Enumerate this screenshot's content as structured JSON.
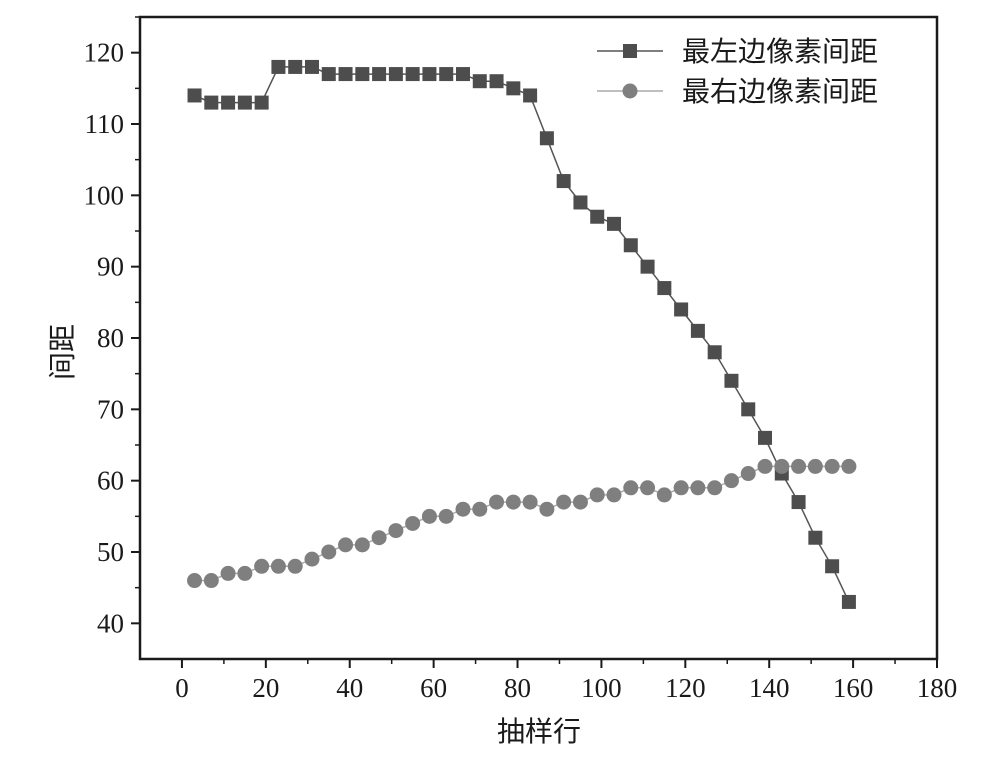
{
  "chart_data": {
    "type": "line",
    "title": "",
    "xlabel": "抽样行",
    "ylabel": "间距",
    "xlim": [
      -10,
      180
    ],
    "ylim": [
      35,
      125
    ],
    "xticks": [
      0,
      20,
      40,
      60,
      80,
      100,
      120,
      140,
      160,
      180
    ],
    "yticks": [
      40,
      50,
      60,
      70,
      80,
      90,
      100,
      110,
      120
    ],
    "grid": false,
    "legend_position": "top-right",
    "series": [
      {
        "name": "最左边像素间距",
        "marker": "square",
        "color": "#4d4d4d",
        "line_color": "#555555",
        "x": [
          3,
          7,
          11,
          15,
          19,
          23,
          27,
          31,
          35,
          39,
          43,
          47,
          51,
          55,
          59,
          63,
          67,
          71,
          75,
          79,
          83,
          87,
          91,
          95,
          99,
          103,
          107,
          111,
          115,
          119,
          123,
          127,
          131,
          135,
          139,
          143,
          147,
          151,
          155,
          159
        ],
        "y": [
          114,
          113,
          113,
          113,
          113,
          118,
          118,
          118,
          117,
          117,
          117,
          117,
          117,
          117,
          117,
          117,
          117,
          116,
          116,
          115,
          114,
          108,
          102,
          99,
          97,
          96,
          93,
          90,
          87,
          84,
          81,
          78,
          74,
          70,
          66,
          61,
          57,
          52,
          48,
          43
        ]
      },
      {
        "name": "最右边像素间距",
        "marker": "circle",
        "color": "#7f7f7f",
        "line_color": "#aaaaaa",
        "x": [
          3,
          7,
          11,
          15,
          19,
          23,
          27,
          31,
          35,
          39,
          43,
          47,
          51,
          55,
          59,
          63,
          67,
          71,
          75,
          79,
          83,
          87,
          91,
          95,
          99,
          103,
          107,
          111,
          115,
          119,
          123,
          127,
          131,
          135,
          139,
          143,
          147,
          151,
          155,
          159
        ],
        "y": [
          46,
          46,
          47,
          47,
          48,
          48,
          48,
          49,
          50,
          51,
          51,
          52,
          53,
          54,
          55,
          55,
          56,
          56,
          57,
          57,
          57,
          56,
          57,
          57,
          58,
          58,
          59,
          59,
          58,
          59,
          59,
          59,
          60,
          61,
          62,
          62,
          62,
          62,
          62,
          62
        ]
      }
    ]
  }
}
